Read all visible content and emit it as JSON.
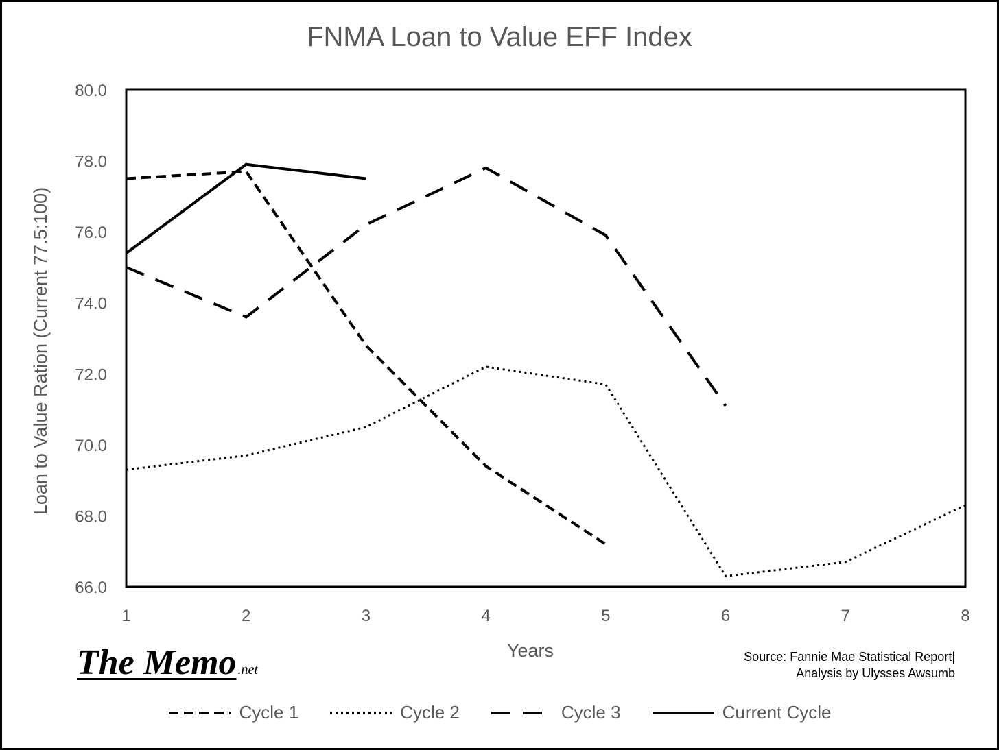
{
  "chart_data": {
    "type": "line",
    "title": "FNMA Loan to Value EFF Index",
    "xlabel": "Years",
    "ylabel": "Loan to Value Ration (Current 77.5:100)",
    "x": [
      1,
      2,
      3,
      4,
      5,
      6,
      7,
      8
    ],
    "x_ticks": [
      "1",
      "2",
      "3",
      "4",
      "5",
      "6",
      "7",
      "8"
    ],
    "xlim": [
      1,
      8
    ],
    "ylim": [
      66,
      80
    ],
    "y_ticks": [
      "80.0",
      "78.0",
      "76.0",
      "74.0",
      "72.0",
      "70.0",
      "68.0",
      "66.0"
    ],
    "grid": false,
    "legend_position": "bottom",
    "series": [
      {
        "name": "Cycle 1",
        "style": "dashed",
        "color": "#000000",
        "values": [
          77.5,
          77.7,
          72.8,
          69.4,
          67.2,
          null,
          null,
          null
        ]
      },
      {
        "name": "Cycle 2",
        "style": "dotted",
        "color": "#000000",
        "values": [
          69.3,
          69.7,
          70.5,
          72.2,
          71.7,
          66.3,
          66.7,
          68.3
        ]
      },
      {
        "name": "Cycle 3",
        "style": "long-dashed",
        "color": "#000000",
        "values": [
          75.0,
          73.6,
          76.2,
          77.8,
          75.9,
          71.1,
          null,
          null
        ]
      },
      {
        "name": "Current Cycle",
        "style": "solid",
        "color": "#000000",
        "values": [
          75.4,
          77.9,
          77.5,
          null,
          null,
          null,
          null,
          null
        ]
      }
    ]
  },
  "branding": {
    "logo_main": "The Memo",
    "logo_suffix": ".net"
  },
  "source_note": {
    "line1": "Source: Fannie Mae Statistical Report|",
    "line2": "Analysis by Ulysses Awsumb"
  }
}
